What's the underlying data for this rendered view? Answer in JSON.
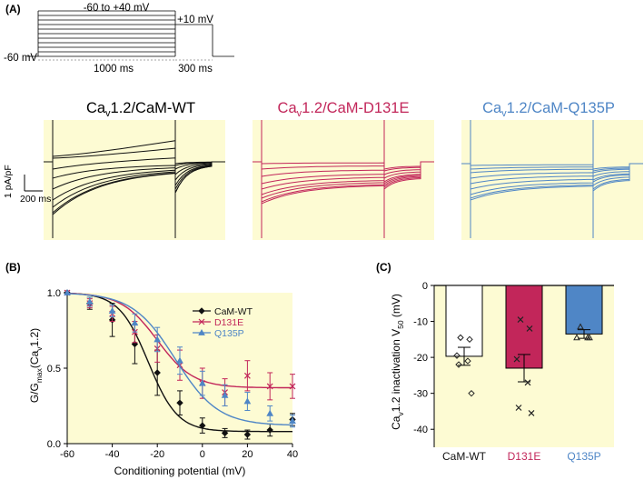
{
  "colors": {
    "wt": "#111111",
    "d131e": "#c2265a",
    "q135p": "#4f86c6",
    "panel_bg": "#fdfbd3"
  },
  "panel_a": {
    "label": "(A)",
    "protocol": {
      "range_label": "-60 to +40 mV",
      "test_label": "+10 mV",
      "holding_label": "-60 mV",
      "conditioning_duration": "1000 ms",
      "test_duration": "300 ms",
      "conditioning_levels_mV": [
        -60,
        -50,
        -40,
        -30,
        -20,
        -10,
        0,
        10,
        20,
        30,
        40
      ]
    },
    "traces": [
      {
        "key": "wt",
        "title_main": "Ca",
        "title_sub": "v",
        "title_rest": "1.2/CaM-WT"
      },
      {
        "key": "d131e",
        "title_main": "Ca",
        "title_sub": "v",
        "title_rest": "1.2/CaM-D131E"
      },
      {
        "key": "q135p",
        "title_main": "Ca",
        "title_sub": "v",
        "title_rest": "1.2/CaM-Q135P"
      }
    ],
    "scale_bar": {
      "y_label": "1 pA/pF",
      "x_label": "200 ms"
    }
  },
  "chart_data": [
    {
      "panel": "(B)",
      "type": "scatter",
      "xlabel": "Conditioning potential (mV)",
      "ylabel_main": "G/G",
      "ylabel_sub": "max",
      "ylabel_rest": "(Ca",
      "ylabel_sub2": "v",
      "ylabel_end": "1.2)",
      "xlim": [
        -60,
        40
      ],
      "ylim": [
        0,
        1
      ],
      "xticks": [
        -60,
        -40,
        -20,
        0,
        20,
        40
      ],
      "yticks": [
        0.0,
        0.5,
        1.0
      ],
      "ytick_labels": [
        "0.0",
        "0.5",
        "1.0"
      ],
      "x": [
        -60,
        -50,
        -40,
        -30,
        -20,
        -10,
        0,
        10,
        20,
        30,
        40
      ],
      "series": [
        {
          "name": "CaM-WT",
          "key": "wt",
          "marker": "diamond",
          "values": [
            1.0,
            0.93,
            0.82,
            0.66,
            0.47,
            0.27,
            0.12,
            0.07,
            0.06,
            0.09,
            0.16
          ],
          "errors": [
            0.0,
            0.04,
            0.11,
            0.13,
            0.15,
            0.08,
            0.05,
            0.03,
            0.03,
            0.04,
            0.04
          ],
          "fit": {
            "v50": -24,
            "k": 6.5,
            "bottom": 0.08
          }
        },
        {
          "name": "D131E",
          "key": "d131e",
          "marker": "cross",
          "values": [
            1.0,
            0.93,
            0.86,
            0.74,
            0.63,
            0.52,
            0.4,
            0.34,
            0.45,
            0.38,
            0.38
          ],
          "errors": [
            0.0,
            0.03,
            0.05,
            0.07,
            0.09,
            0.1,
            0.1,
            0.09,
            0.1,
            0.09,
            0.08
          ],
          "fit": {
            "v50": -20,
            "k": 8.0,
            "bottom": 0.37
          }
        },
        {
          "name": "Q135P",
          "key": "q135p",
          "marker": "triangle",
          "values": [
            1.0,
            0.94,
            0.88,
            0.8,
            0.69,
            0.55,
            0.4,
            0.32,
            0.28,
            0.2,
            0.15
          ],
          "errors": [
            0.0,
            0.03,
            0.04,
            0.06,
            0.08,
            0.09,
            0.08,
            0.07,
            0.06,
            0.05,
            0.04
          ],
          "fit": {
            "v50": -12,
            "k": 9.5,
            "bottom": 0.12
          }
        }
      ],
      "legend_position": "top-right"
    },
    {
      "panel": "(C)",
      "type": "bar",
      "ylabel_main": "Ca",
      "ylabel_sub": "v",
      "ylabel_rest": "1.2 inactivation V",
      "ylabel_sub2": "50",
      "ylabel_end": " (mV)",
      "ylim": [
        -45,
        0
      ],
      "yticks": [
        0,
        -10,
        -20,
        -30,
        -40
      ],
      "categories": [
        "CaM-WT",
        "D131E",
        "Q135P"
      ],
      "keys": [
        "wt",
        "d131e",
        "q135p"
      ],
      "markers": [
        "diamond",
        "cross",
        "triangle"
      ],
      "values": [
        -19.7,
        -23.0,
        -13.5
      ],
      "errors": [
        2.5,
        3.8,
        1.2
      ],
      "points": [
        [
          -14.5,
          -15.0,
          -19.5,
          -21.0,
          -22.0,
          -30.0
        ],
        [
          -9.5,
          -12.0,
          -20.5,
          -27.0,
          -34.0,
          -35.5
        ],
        [
          -11.5,
          -14.5,
          -14.5,
          -14.5
        ]
      ]
    }
  ]
}
